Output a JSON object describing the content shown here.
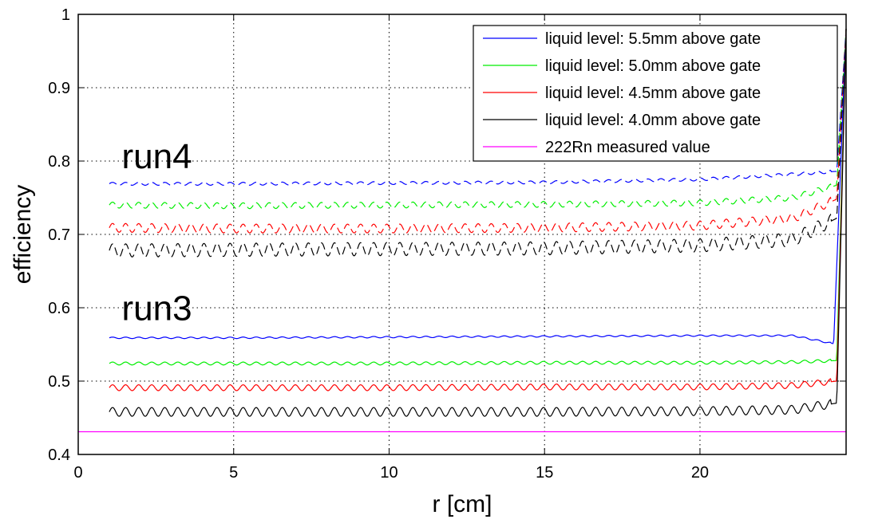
{
  "chart_data": {
    "type": "line",
    "xlabel": "r [cm]",
    "ylabel": "efficiency",
    "xlim": [
      0,
      24.7
    ],
    "ylim": [
      0.4,
      1.0
    ],
    "xticks": [
      0,
      5,
      10,
      15,
      20
    ],
    "yticks": [
      0.4,
      0.5,
      0.6,
      0.7,
      0.8,
      0.9,
      1.0
    ],
    "xtick_labels": [
      "0",
      "5",
      "10",
      "15",
      "20"
    ],
    "ytick_labels": [
      "0.4",
      "0.5",
      "0.6",
      "0.7",
      "0.8",
      "0.9",
      "1"
    ],
    "grid": true,
    "legend_position": "top-right",
    "annotations": [
      {
        "text": "run4",
        "x": 1.4,
        "y": 0.79
      },
      {
        "text": "run3",
        "x": 1.4,
        "y": 0.583
      }
    ],
    "series": [
      {
        "name": "liquid level: 5.5mm above gate",
        "color": "#0000ff",
        "group": "run4",
        "style": "dashed",
        "x": [
          1,
          5,
          10,
          15,
          20,
          23,
          24.4,
          24.7
        ],
        "y": [
          0.769,
          0.769,
          0.77,
          0.771,
          0.775,
          0.782,
          0.786,
          0.98
        ],
        "ripple": 0.002
      },
      {
        "name": "liquid level: 5.0mm above gate",
        "color": "#00ee00",
        "group": "run4",
        "style": "dashed",
        "x": [
          1,
          5,
          10,
          15,
          20,
          23,
          24.4,
          24.7
        ],
        "y": [
          0.74,
          0.739,
          0.74,
          0.741,
          0.743,
          0.75,
          0.767,
          0.98
        ],
        "ripple": 0.004
      },
      {
        "name": "liquid level: 4.5mm above gate",
        "color": "#ff0000",
        "group": "run4",
        "style": "dashed",
        "x": [
          1,
          5,
          10,
          15,
          20,
          23,
          24.4,
          24.7
        ],
        "y": [
          0.709,
          0.708,
          0.708,
          0.709,
          0.712,
          0.722,
          0.748,
          0.98
        ],
        "ripple": 0.006
      },
      {
        "name": "liquid level: 4.0mm above gate",
        "color": "#000000",
        "group": "run4",
        "style": "dashed",
        "x": [
          1,
          5,
          10,
          15,
          20,
          23,
          24.4,
          24.7
        ],
        "y": [
          0.678,
          0.679,
          0.68,
          0.681,
          0.685,
          0.693,
          0.722,
          0.98
        ],
        "ripple": 0.009
      },
      {
        "name": "liquid level: 5.5mm above gate",
        "color": "#0000ff",
        "group": "run3",
        "style": "solid",
        "x": [
          1,
          5,
          10,
          15,
          20,
          23,
          24.3,
          24.7
        ],
        "y": [
          0.559,
          0.559,
          0.56,
          0.561,
          0.562,
          0.562,
          0.551,
          0.98
        ],
        "ripple": 0.001
      },
      {
        "name": "liquid level: 5.0mm above gate",
        "color": "#00ee00",
        "group": "run3",
        "style": "solid",
        "x": [
          1,
          5,
          10,
          15,
          20,
          23,
          24.4,
          24.7
        ],
        "y": [
          0.524,
          0.524,
          0.524,
          0.525,
          0.525,
          0.526,
          0.528,
          0.98
        ],
        "ripple": 0.002
      },
      {
        "name": "liquid level: 4.5mm above gate",
        "color": "#ff0000",
        "group": "run3",
        "style": "solid",
        "x": [
          1,
          5,
          10,
          15,
          20,
          23,
          24.4,
          24.7
        ],
        "y": [
          0.491,
          0.491,
          0.491,
          0.492,
          0.492,
          0.494,
          0.5,
          0.98
        ],
        "ripple": 0.004
      },
      {
        "name": "liquid level: 4.0mm above gate",
        "color": "#000000",
        "group": "run3",
        "style": "solid",
        "x": [
          1,
          5,
          10,
          15,
          20,
          23,
          24.4,
          24.7
        ],
        "y": [
          0.458,
          0.458,
          0.458,
          0.458,
          0.459,
          0.461,
          0.47,
          0.98
        ],
        "ripple": 0.006
      },
      {
        "name": "222Rn measured value",
        "color": "#ff00ff",
        "group": "reference",
        "style": "solid",
        "x": [
          0,
          24.7
        ],
        "y": [
          0.431,
          0.431
        ],
        "ripple": 0
      }
    ],
    "legend": [
      {
        "label": "liquid level: 5.5mm above gate",
        "color": "#0000ff"
      },
      {
        "label": "liquid level: 5.0mm above gate",
        "color": "#00ee00"
      },
      {
        "label": "liquid level: 4.5mm above gate",
        "color": "#ff0000"
      },
      {
        "label": "liquid level: 4.0mm above gate",
        "color": "#000000"
      },
      {
        "label": "222Rn measured value",
        "color": "#ff00ff"
      }
    ]
  }
}
